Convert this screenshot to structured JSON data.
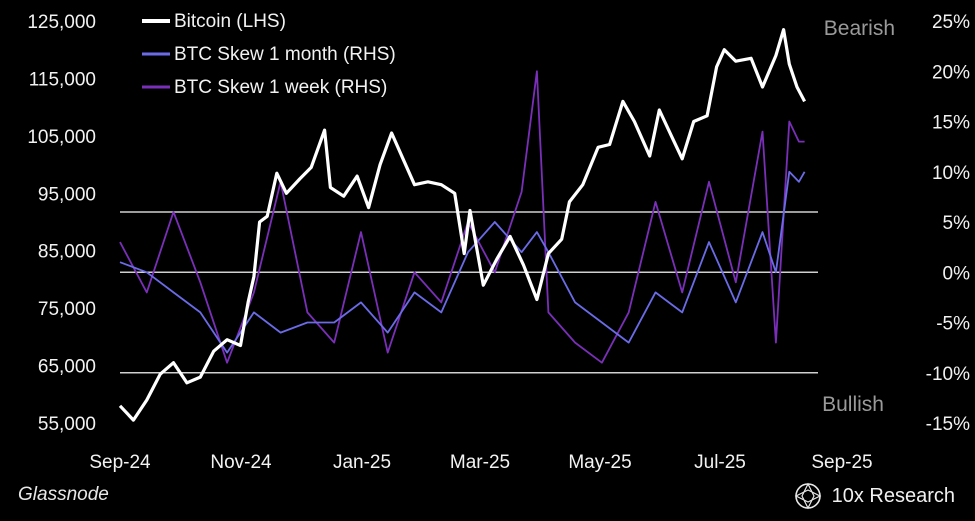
{
  "chart_data": {
    "type": "line",
    "title": "",
    "xlabel": "",
    "x_ticks": [
      "Sep-24",
      "Nov-24",
      "Jan-25",
      "Mar-25",
      "May-25",
      "Jul-25",
      "Sep-25"
    ],
    "x_range": [
      "2024-09-01",
      "2025-09-01"
    ],
    "y_left": {
      "ticks": [
        "125,000",
        "115,000",
        "105,000",
        "95,000",
        "85,000",
        "75,000",
        "65,000",
        "55,000"
      ],
      "range": [
        55000,
        125000
      ]
    },
    "y_right": {
      "ticks": [
        "25%",
        "20%",
        "15%",
        "10%",
        "5%",
        "0%",
        "-5%",
        "-10%",
        "-15%"
      ],
      "range": [
        -15,
        25
      ]
    },
    "series": [
      {
        "name": "Bitcoin (LHS)",
        "axis": "left",
        "color": "#ffffff",
        "points": [
          [
            "2024-09-01",
            58000
          ],
          [
            "2024-09-08",
            55500
          ],
          [
            "2024-09-15",
            59000
          ],
          [
            "2024-09-22",
            63500
          ],
          [
            "2024-09-29",
            65500
          ],
          [
            "2024-10-06",
            62000
          ],
          [
            "2024-10-13",
            63000
          ],
          [
            "2024-10-20",
            67500
          ],
          [
            "2024-10-27",
            69500
          ],
          [
            "2024-11-03",
            68500
          ],
          [
            "2024-11-07",
            76000
          ],
          [
            "2024-11-10",
            80500
          ],
          [
            "2024-11-13",
            90000
          ],
          [
            "2024-11-17",
            91000
          ],
          [
            "2024-11-22",
            98500
          ],
          [
            "2024-11-27",
            95000
          ],
          [
            "2024-12-04",
            97500
          ],
          [
            "2024-12-10",
            99500
          ],
          [
            "2024-12-17",
            106000
          ],
          [
            "2024-12-20",
            96000
          ],
          [
            "2024-12-27",
            94500
          ],
          [
            "2025-01-03",
            98000
          ],
          [
            "2025-01-09",
            92500
          ],
          [
            "2025-01-15",
            100000
          ],
          [
            "2025-01-21",
            105500
          ],
          [
            "2025-01-27",
            101000
          ],
          [
            "2025-02-02",
            96500
          ],
          [
            "2025-02-09",
            97000
          ],
          [
            "2025-02-16",
            96500
          ],
          [
            "2025-02-23",
            95000
          ],
          [
            "2025-02-28",
            84500
          ],
          [
            "2025-03-03",
            92000
          ],
          [
            "2025-03-10",
            79000
          ],
          [
            "2025-03-17",
            83500
          ],
          [
            "2025-03-24",
            87500
          ],
          [
            "2025-03-31",
            82500
          ],
          [
            "2025-04-07",
            76500
          ],
          [
            "2025-04-13",
            84500
          ],
          [
            "2025-04-20",
            87000
          ],
          [
            "2025-04-24",
            93500
          ],
          [
            "2025-05-01",
            96500
          ],
          [
            "2025-05-09",
            103000
          ],
          [
            "2025-05-15",
            103500
          ],
          [
            "2025-05-22",
            111000
          ],
          [
            "2025-05-28",
            107500
          ],
          [
            "2025-06-05",
            101500
          ],
          [
            "2025-06-10",
            109500
          ],
          [
            "2025-06-17",
            104500
          ],
          [
            "2025-06-22",
            101000
          ],
          [
            "2025-06-28",
            107500
          ],
          [
            "2025-07-05",
            108500
          ],
          [
            "2025-07-10",
            117000
          ],
          [
            "2025-07-14",
            120000
          ],
          [
            "2025-07-20",
            118000
          ],
          [
            "2025-07-28",
            118500
          ],
          [
            "2025-08-03",
            113500
          ],
          [
            "2025-08-10",
            119000
          ],
          [
            "2025-08-14",
            123500
          ],
          [
            "2025-08-17",
            117500
          ],
          [
            "2025-08-21",
            113500
          ],
          [
            "2025-08-25",
            111000
          ]
        ]
      },
      {
        "name": "BTC Skew 1 month (RHS)",
        "axis": "right",
        "color": "#6b6be8",
        "points": [
          [
            "2024-09-01",
            1
          ],
          [
            "2024-09-15",
            0
          ],
          [
            "2024-09-29",
            -2
          ],
          [
            "2024-10-13",
            -4
          ],
          [
            "2024-10-27",
            -8
          ],
          [
            "2024-11-10",
            -4
          ],
          [
            "2024-11-24",
            -6
          ],
          [
            "2024-12-08",
            -5
          ],
          [
            "2024-12-22",
            -5
          ],
          [
            "2025-01-05",
            -3
          ],
          [
            "2025-01-19",
            -6
          ],
          [
            "2025-02-02",
            -2
          ],
          [
            "2025-02-16",
            -4
          ],
          [
            "2025-03-02",
            2
          ],
          [
            "2025-03-16",
            5
          ],
          [
            "2025-03-30",
            2
          ],
          [
            "2025-04-07",
            4
          ],
          [
            "2025-04-13",
            2
          ],
          [
            "2025-04-27",
            -3
          ],
          [
            "2025-05-11",
            -5
          ],
          [
            "2025-05-25",
            -7
          ],
          [
            "2025-06-08",
            -2
          ],
          [
            "2025-06-22",
            -4
          ],
          [
            "2025-07-06",
            3
          ],
          [
            "2025-07-20",
            -3
          ],
          [
            "2025-08-03",
            4
          ],
          [
            "2025-08-10",
            0
          ],
          [
            "2025-08-17",
            10
          ],
          [
            "2025-08-22",
            9
          ],
          [
            "2025-08-25",
            10
          ]
        ]
      },
      {
        "name": "BTC Skew 1 week (RHS)",
        "axis": "right",
        "color": "#7a2fb8",
        "points": [
          [
            "2024-09-01",
            3
          ],
          [
            "2024-09-15",
            -2
          ],
          [
            "2024-09-29",
            6
          ],
          [
            "2024-10-13",
            -1
          ],
          [
            "2024-10-27",
            -9
          ],
          [
            "2024-11-10",
            -2
          ],
          [
            "2024-11-24",
            9
          ],
          [
            "2024-12-08",
            -4
          ],
          [
            "2024-12-22",
            -7
          ],
          [
            "2025-01-05",
            4
          ],
          [
            "2025-01-19",
            -8
          ],
          [
            "2025-02-02",
            0
          ],
          [
            "2025-02-16",
            -3
          ],
          [
            "2025-03-02",
            5
          ],
          [
            "2025-03-16",
            0
          ],
          [
            "2025-03-30",
            8
          ],
          [
            "2025-04-07",
            20
          ],
          [
            "2025-04-13",
            -4
          ],
          [
            "2025-04-27",
            -7
          ],
          [
            "2025-05-11",
            -9
          ],
          [
            "2025-05-25",
            -4
          ],
          [
            "2025-06-08",
            7
          ],
          [
            "2025-06-22",
            -2
          ],
          [
            "2025-07-06",
            9
          ],
          [
            "2025-07-20",
            -1
          ],
          [
            "2025-08-03",
            14
          ],
          [
            "2025-08-10",
            -7
          ],
          [
            "2025-08-17",
            15
          ],
          [
            "2025-08-22",
            13
          ],
          [
            "2025-08-25",
            13
          ]
        ]
      }
    ],
    "reference_lines_rhs": [
      6,
      0,
      -10
    ],
    "annotations": [
      "Bearish",
      "Bullish"
    ],
    "legend_position": "top-left",
    "grid": false
  },
  "footer": {
    "source": "Glassnode",
    "brand": "10x Research"
  }
}
